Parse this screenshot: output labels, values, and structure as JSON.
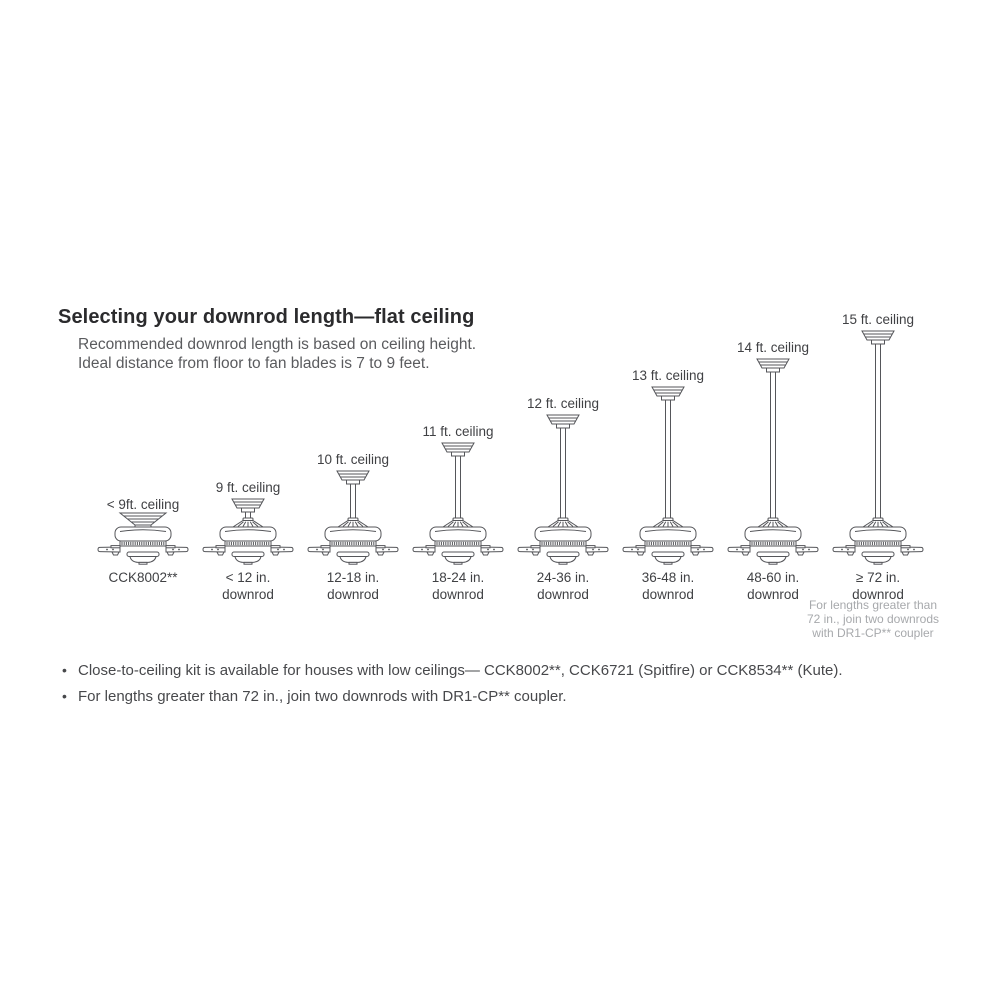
{
  "header": {
    "title": "Selecting your downrod length—flat ceiling",
    "subtitle_line1": "Recommended downrod length is based on ceiling height.",
    "subtitle_line2": "Ideal distance from floor to fan blades is 7 to 9 feet."
  },
  "diagram": {
    "fans": [
      {
        "ceiling_label": "< 9ft. ceiling",
        "downrod_label_line1": "CCK8002**",
        "downrod_label_line2": "",
        "mount": "flush",
        "ceiling_ft": null
      },
      {
        "ceiling_label": "9 ft. ceiling",
        "downrod_label_line1": "< 12 in.",
        "downrod_label_line2": "downrod",
        "mount": "downrod",
        "ceiling_ft": 9
      },
      {
        "ceiling_label": "10 ft. ceiling",
        "downrod_label_line1": "12-18 in.",
        "downrod_label_line2": "downrod",
        "mount": "downrod",
        "ceiling_ft": 10
      },
      {
        "ceiling_label": "11 ft. ceiling",
        "downrod_label_line1": "18-24 in.",
        "downrod_label_line2": "downrod",
        "mount": "downrod",
        "ceiling_ft": 11
      },
      {
        "ceiling_label": "12 ft. ceiling",
        "downrod_label_line1": "24-36 in.",
        "downrod_label_line2": "downrod",
        "mount": "downrod",
        "ceiling_ft": 12
      },
      {
        "ceiling_label": "13 ft. ceiling",
        "downrod_label_line1": "36-48 in.",
        "downrod_label_line2": "downrod",
        "mount": "downrod",
        "ceiling_ft": 13
      },
      {
        "ceiling_label": "14 ft. ceiling",
        "downrod_label_line1": "48-60 in.",
        "downrod_label_line2": "downrod",
        "mount": "downrod",
        "ceiling_ft": 14
      },
      {
        "ceiling_label": "15 ft. ceiling",
        "downrod_label_line1": "≥ 72 in.",
        "downrod_label_line2": "downrod",
        "mount": "downrod",
        "ceiling_ft": 15
      }
    ],
    "note": {
      "line1": "For lengths greater than",
      "line2": "72 in., join two downrods",
      "line3": "with DR1-CP** coupler"
    }
  },
  "footnotes": [
    {
      "bullet": "•",
      "text": "Close-to-ceiling kit is available for houses with low ceilings— CCK8002**, CCK6721 (Spitfire) or CCK8534** (Kute)."
    },
    {
      "bullet": "•",
      "text": "For lengths greater than 72 in., join two downrods with DR1-CP** coupler."
    }
  ],
  "colors": {
    "line_art": "#55565a",
    "title_text": "#2b2b2d",
    "subtitle_text": "#5a5b5e",
    "label_text": "#404144",
    "note_text": "#a7a9ac",
    "background": "#ffffff"
  }
}
